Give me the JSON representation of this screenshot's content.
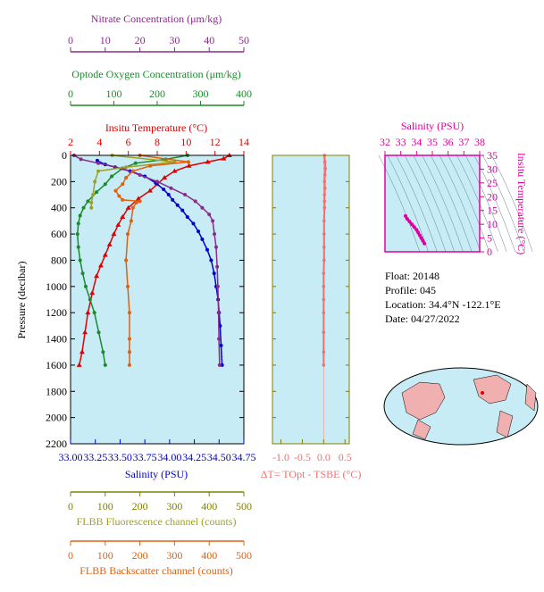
{
  "colors": {
    "nitrate": "#8b2a8b",
    "oxygen": "#1a8a2a",
    "temperature": "#e00000",
    "salinity": "#0000cc",
    "fluorescence": "#a0a020",
    "backscatter": "#e06010",
    "delta_t": "#f07070",
    "ts_curve": "#e000a0",
    "plot_bg": "#c8ecf6",
    "axis_olive": "#808000"
  },
  "info": {
    "float": "Float:  20148",
    "profile": "Profile:  045",
    "location": "Location:  34.4°N  -122.1°E",
    "date": "Date:  04/27/2022"
  },
  "chart_data": [
    {
      "type": "line",
      "title": "",
      "y_axis": {
        "label": "Pressure (decibar)",
        "range": [
          2200,
          0
        ],
        "ticks": [
          0,
          200,
          400,
          600,
          800,
          1000,
          1200,
          1400,
          1600,
          1800,
          2000,
          2200
        ]
      },
      "axes": {
        "nitrate": {
          "label": "Nitrate Concentration (μm/kg)",
          "range": [
            0,
            50
          ],
          "ticks": [
            0,
            10,
            20,
            30,
            40,
            50
          ]
        },
        "oxygen": {
          "label": "Optode Oxygen Concentration (μm/kg)",
          "range": [
            0,
            400
          ],
          "ticks": [
            0,
            100,
            200,
            300,
            400
          ]
        },
        "temperature": {
          "label": "Insitu Temperature (°C)",
          "range": [
            2,
            14
          ],
          "ticks": [
            2,
            4,
            6,
            8,
            10,
            12,
            14
          ]
        },
        "salinity": {
          "label": "Salinity (PSU)",
          "range": [
            33.0,
            34.75
          ],
          "ticks": [
            "33.00",
            "33.25",
            "33.50",
            "33.75",
            "34.00",
            "34.25",
            "34.50",
            "34.75"
          ]
        },
        "fluorescence": {
          "label": "FLBB Fluorescence channel (counts)",
          "range": [
            0,
            500
          ],
          "ticks": [
            0,
            100,
            200,
            300,
            400,
            500
          ]
        },
        "backscatter": {
          "label": "FLBB Backscatter channel (counts)",
          "range": [
            0,
            500
          ],
          "ticks": [
            0,
            100,
            200,
            300,
            400,
            500
          ]
        }
      },
      "series": [
        {
          "name": "Temperature",
          "color_key": "temperature",
          "marker": "triangle",
          "x": [
            13.0,
            12.6,
            11.5,
            10.2,
            9.2,
            8.5,
            8.0,
            7.5,
            6.7,
            6.0,
            5.6,
            5.3,
            5.0,
            4.7,
            4.4,
            4.1,
            3.8,
            3.5,
            3.2,
            3.0,
            2.8,
            2.6
          ],
          "y": [
            0,
            25,
            50,
            80,
            120,
            170,
            220,
            270,
            330,
            400,
            470,
            530,
            600,
            680,
            760,
            840,
            920,
            1050,
            1200,
            1350,
            1500,
            1600
          ]
        },
        {
          "name": "Salinity",
          "color_key": "salinity",
          "marker": "circle",
          "x": [
            33.27,
            33.35,
            33.45,
            33.6,
            33.75,
            33.86,
            33.94,
            33.99,
            34.03,
            34.08,
            34.13,
            34.18,
            34.24,
            34.29,
            34.33,
            34.38,
            34.42,
            34.45,
            34.47,
            34.49,
            34.5,
            34.51,
            34.52,
            34.53
          ],
          "y": [
            40,
            70,
            90,
            120,
            160,
            210,
            260,
            300,
            340,
            380,
            420,
            470,
            520,
            580,
            640,
            720,
            800,
            900,
            1000,
            1100,
            1200,
            1300,
            1450,
            1600
          ]
        },
        {
          "name": "Oxygen",
          "color_key": "oxygen",
          "marker": "circle",
          "x": [
            270,
            220,
            150,
            120,
            95,
            80,
            60,
            40,
            30,
            22,
            18,
            16,
            18,
            22,
            28,
            35,
            45,
            55,
            65,
            75,
            80
          ],
          "y": [
            0,
            30,
            60,
            100,
            160,
            220,
            280,
            350,
            400,
            460,
            520,
            600,
            700,
            800,
            900,
            1000,
            1100,
            1200,
            1350,
            1500,
            1600
          ]
        },
        {
          "name": "Nitrate",
          "color_key": "nitrate",
          "marker": "circle",
          "x": [
            1,
            3,
            8,
            15,
            20,
            25,
            29,
            33,
            36,
            38,
            40,
            41,
            41.5,
            42,
            42.3,
            42.5,
            42.7,
            42.8,
            43
          ],
          "y": [
            0,
            30,
            60,
            100,
            150,
            200,
            250,
            300,
            350,
            400,
            450,
            500,
            600,
            700,
            850,
            1000,
            1200,
            1400,
            1600
          ]
        },
        {
          "name": "Fluorescence",
          "color_key": "fluorescence",
          "marker": "circle",
          "x": [
            120,
            300,
            160,
            80,
            70,
            65,
            60,
            60
          ],
          "y": [
            0,
            50,
            90,
            120,
            200,
            300,
            360,
            400
          ]
        },
        {
          "name": "Backscatter",
          "color_key": "backscatter",
          "marker": "circle",
          "x": [
            200,
            340,
            230,
            180,
            160,
            150,
            130,
            140,
            150,
            200,
            190,
            180,
            175,
            165,
            160,
            165,
            170,
            170,
            170,
            170
          ],
          "y": [
            0,
            50,
            80,
            120,
            170,
            220,
            270,
            310,
            340,
            350,
            360,
            400,
            500,
            600,
            800,
            1000,
            1200,
            1400,
            1500,
            1600
          ]
        }
      ]
    },
    {
      "type": "scatter",
      "xlabel": "ΔT= TOpt - TSBE (°C)",
      "x_ticks": [
        "-1.0",
        "-0.5",
        "0.0",
        "0.5"
      ],
      "xlim": [
        -1.2,
        0.6
      ],
      "series": [
        {
          "name": "dT",
          "color_key": "delta_t",
          "x": [
            0.02,
            0.03,
            0.04,
            0.03,
            0.02,
            0.03,
            0.02,
            0.02,
            0.02,
            0.01,
            0.01,
            0.01,
            0.01,
            0.0,
            0.0,
            0.0,
            0.0,
            0.0,
            0.0,
            0.0
          ],
          "y": [
            0,
            50,
            100,
            150,
            200,
            250,
            300,
            350,
            400,
            500,
            600,
            700,
            800,
            900,
            1000,
            1100,
            1200,
            1350,
            1500,
            1600
          ]
        }
      ]
    },
    {
      "type": "line",
      "xlabel": "Salinity (PSU)",
      "ylabel": "Insitu Temperature (°C)",
      "x_ticks": [
        32,
        33,
        34,
        35,
        36,
        37,
        38
      ],
      "y_ticks": [
        0,
        5,
        10,
        15,
        20,
        25,
        30,
        35
      ],
      "xlim": [
        32,
        38
      ],
      "ylim": [
        0,
        35
      ],
      "series": [
        {
          "name": "TS",
          "color_key": "ts_curve",
          "x": [
            33.3,
            33.4,
            33.55,
            33.7,
            33.85,
            34.0,
            34.1,
            34.2,
            34.3,
            34.4,
            34.5
          ],
          "y": [
            13.0,
            12.0,
            11.0,
            10.0,
            9.0,
            8.0,
            7.0,
            6.0,
            5.0,
            4.0,
            3.0
          ]
        }
      ]
    }
  ]
}
